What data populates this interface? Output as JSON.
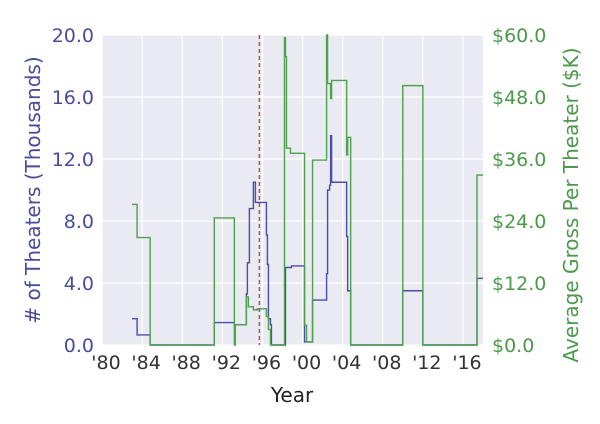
{
  "chart_data": {
    "type": "line",
    "step": "post",
    "xlabel": "Year",
    "ylabel": "# of Theaters (Thousands)",
    "y2label": "Average Gross Per Theater ($K)",
    "xlim": [
      1980,
      2018
    ],
    "ylim": [
      0,
      20
    ],
    "y2lim": [
      0,
      60
    ],
    "grid": true,
    "x_ticks": [
      1980,
      1984,
      1988,
      1992,
      1996,
      2000,
      2004,
      2008,
      2012,
      2016
    ],
    "x_tick_labels": [
      "'80",
      "'84",
      "'88",
      "'92",
      "'96",
      "'00",
      "'04",
      "'08",
      "'12",
      "'16"
    ],
    "y_ticks": [
      0,
      4,
      8,
      12,
      16,
      20
    ],
    "y_tick_labels": [
      "0.0",
      "4.0",
      "8.0",
      "12.0",
      "16.0",
      "20.0"
    ],
    "y2_ticks": [
      0,
      12,
      24,
      36,
      48,
      60
    ],
    "y2_tick_labels": [
      "$0.0",
      "$12.0",
      "$24.0",
      "$36.0",
      "$48.0",
      "$60.0"
    ],
    "vline": {
      "x": 1995.7,
      "style": "dashed",
      "color": "#a85858"
    },
    "colors": {
      "theaters": "#4c4caa",
      "gross": "#4fa04f",
      "background": "#eaeaf2",
      "left_label": "#4b4b9c",
      "right_label": "#4a9a4a"
    },
    "series": [
      {
        "axis": "left",
        "points": [
          [
            1983.0,
            1.7
          ],
          [
            1983.5,
            0.65
          ],
          [
            1984.8,
            0
          ],
          [
            1991.2,
            1.45
          ],
          [
            1993.2,
            1.3
          ],
          [
            1994.4,
            3.3
          ],
          [
            1994.5,
            5.3
          ],
          [
            1994.7,
            8.8
          ],
          [
            1995.1,
            10.5
          ],
          [
            1995.3,
            9.2
          ],
          [
            1996.4,
            7.1
          ],
          [
            1996.5,
            5.2
          ],
          [
            1996.6,
            1.7
          ],
          [
            1996.8,
            1.3
          ],
          [
            1996.9,
            0
          ],
          [
            1998.3,
            5.0
          ],
          [
            1998.9,
            5.1
          ],
          [
            2000.2,
            0.2
          ],
          [
            2001.0,
            2.9
          ],
          [
            2002.4,
            4.6
          ],
          [
            2002.5,
            10.0
          ],
          [
            2002.7,
            10.3
          ],
          [
            2002.8,
            13.5
          ],
          [
            2002.9,
            10.5
          ],
          [
            2004.4,
            7.0
          ],
          [
            2004.5,
            3.5
          ],
          [
            2004.8,
            0
          ],
          [
            2010.0,
            3.5
          ],
          [
            2012.0,
            0
          ],
          [
            2017.4,
            4.3
          ]
        ]
      },
      {
        "axis": "right",
        "points": [
          [
            1983.0,
            27.2
          ],
          [
            1983.5,
            20.8
          ],
          [
            1984.8,
            0
          ],
          [
            1991.2,
            24.6
          ],
          [
            1993.2,
            0
          ],
          [
            1993.3,
            3.9
          ],
          [
            1994.4,
            9.3
          ],
          [
            1994.6,
            7.4
          ],
          [
            1995.1,
            6.8
          ],
          [
            1995.5,
            7.0
          ],
          [
            1996.4,
            5.5
          ],
          [
            1996.6,
            3.0
          ],
          [
            1996.8,
            0
          ],
          [
            1998.2,
            59.5
          ],
          [
            1998.3,
            55.8
          ],
          [
            1998.4,
            38.1
          ],
          [
            1998.8,
            37.1
          ],
          [
            2000.2,
            3.8
          ],
          [
            2000.4,
            0.6
          ],
          [
            2001.0,
            35.8
          ],
          [
            2002.4,
            60
          ],
          [
            2002.5,
            50.6
          ],
          [
            2002.8,
            47.7
          ],
          [
            2002.9,
            51.2
          ],
          [
            2004.4,
            36.8
          ],
          [
            2004.5,
            40.2
          ],
          [
            2004.8,
            0
          ],
          [
            2010.0,
            50.2
          ],
          [
            2012.0,
            0
          ],
          [
            2017.4,
            32.9
          ]
        ]
      }
    ]
  }
}
